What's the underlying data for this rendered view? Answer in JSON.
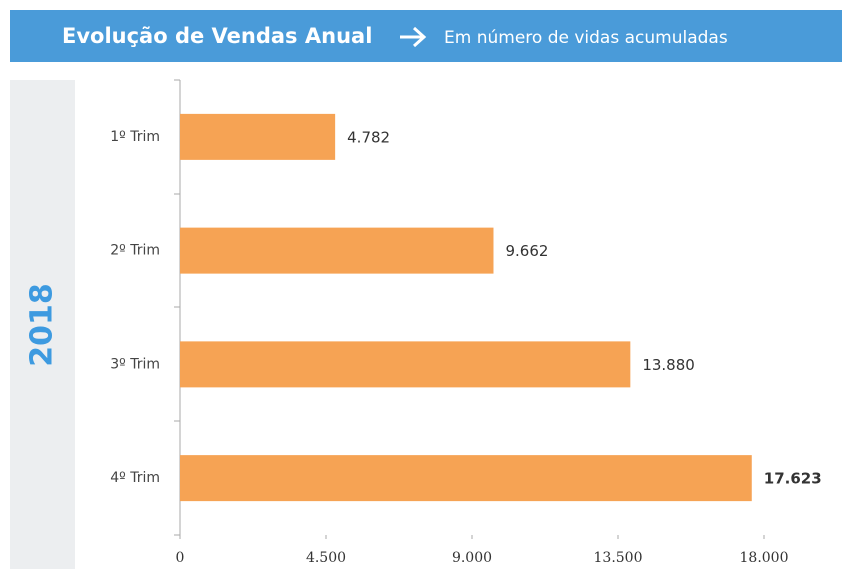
{
  "chart_data": {
    "type": "bar",
    "orientation": "horizontal",
    "title": "Evolução de Vendas Anual",
    "subtitle": "Em número de vidas acumuladas",
    "side_label": "2018",
    "categories": [
      "1º Trim",
      "2º Trim",
      "3º Trim",
      "4º Trim"
    ],
    "values": [
      4782,
      9662,
      13880,
      17623
    ],
    "value_labels": [
      "4.782",
      "9.662",
      "13.880",
      "17.623"
    ],
    "color": "#f6a354",
    "xlim": [
      0,
      18000
    ],
    "xticks": [
      0,
      {
        "value": 4500,
        "label": "4.500"
      },
      {
        "value": 9000,
        "label": "9.000"
      },
      {
        "value": 13500,
        "label": "13.500"
      },
      {
        "value": 18000,
        "label": "18.000"
      }
    ],
    "grid": false
  }
}
